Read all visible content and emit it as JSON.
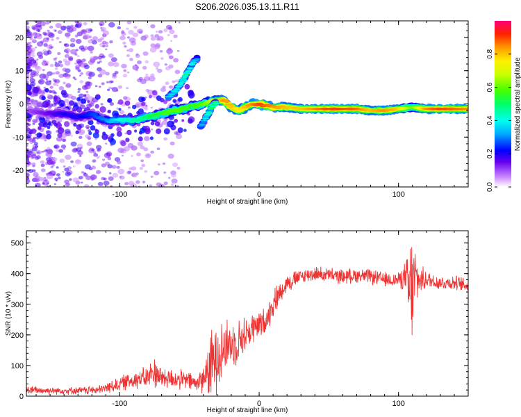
{
  "title": "S206.2026.035.13.11.R11",
  "chart_data": [
    {
      "type": "heatmap",
      "name": "spectrogram",
      "xlabel": "Height of straight line (km)",
      "ylabel": "Frequency (Hz)",
      "xlim": [
        -167,
        150
      ],
      "ylim": [
        -25,
        25
      ],
      "xticks": [
        -100,
        0,
        100
      ],
      "yticks": [
        -20,
        -10,
        0,
        10,
        20
      ],
      "colorbar": {
        "label": "Normalized spectral amplitude",
        "range": [
          0,
          1
        ],
        "ticks": [
          "0.0",
          "0.2",
          "0.4",
          "0.6",
          "0.8"
        ],
        "tick_values": [
          0.0,
          0.2,
          0.4,
          0.6,
          0.8
        ]
      },
      "ridge": {
        "x": [
          -165,
          -150,
          -140,
          -130,
          -120,
          -110,
          -100,
          -90,
          -80,
          -70,
          -60,
          -50,
          -40,
          -32,
          -25,
          -20,
          -15,
          -10,
          -5,
          0,
          10,
          20,
          30,
          40,
          50,
          60,
          70,
          80,
          90,
          100,
          110,
          120,
          130,
          140,
          150
        ],
        "freq": [
          -2,
          -3,
          -3,
          -4,
          -3,
          -5,
          -5,
          -5,
          -4,
          -3,
          -2,
          -1,
          0,
          1,
          1,
          -1,
          -2,
          -1,
          0,
          0,
          -1,
          -1,
          -1.5,
          -1.5,
          -1.5,
          -1.5,
          -1.5,
          -2,
          -2,
          -1.5,
          -1,
          -1.5,
          -1.5,
          -1.5,
          -1.5
        ],
        "amp": [
          0.1,
          0.15,
          0.2,
          0.2,
          0.25,
          0.3,
          0.4,
          0.45,
          0.5,
          0.55,
          0.6,
          0.55,
          0.6,
          0.7,
          0.85,
          0.8,
          0.75,
          0.8,
          0.85,
          0.9,
          0.85,
          0.8,
          0.8,
          0.85,
          0.9,
          0.9,
          0.88,
          0.8,
          0.85,
          0.8,
          0.6,
          0.85,
          0.9,
          0.88,
          0.85
        ]
      },
      "secondary_branches": [
        {
          "x": [
            -65,
            -58,
            -52,
            -48,
            -44
          ],
          "freq": [
            2,
            5,
            9,
            12,
            14
          ],
          "amp": [
            0.35,
            0.4,
            0.45,
            0.4,
            0.3
          ]
        },
        {
          "x": [
            -42,
            -38,
            -34,
            -30
          ],
          "freq": [
            -7,
            -4,
            -1,
            1
          ],
          "amp": [
            0.3,
            0.4,
            0.5,
            0.5
          ]
        }
      ]
    },
    {
      "type": "line",
      "name": "snr",
      "xlabel": "Height of straight line (km)",
      "ylabel": "SNR (10 * v/v)",
      "xlim": [
        -167,
        150
      ],
      "ylim": [
        0,
        540
      ],
      "xticks": [
        -100,
        0,
        100
      ],
      "yticks": [
        0,
        100,
        200,
        300,
        400,
        500
      ],
      "color": "#ee3333",
      "x": [
        -167,
        -150,
        -130,
        -115,
        -100,
        -90,
        -80,
        -75,
        -70,
        -60,
        -50,
        -45,
        -40,
        -35,
        -30,
        -25,
        -20,
        -15,
        -10,
        -5,
        0,
        5,
        10,
        15,
        20,
        25,
        30,
        40,
        50,
        60,
        70,
        80,
        90,
        100,
        105,
        108,
        110,
        112,
        115,
        120,
        130,
        140,
        150
      ],
      "mean": [
        20,
        18,
        18,
        20,
        40,
        55,
        60,
        80,
        60,
        55,
        50,
        40,
        60,
        90,
        150,
        160,
        170,
        180,
        200,
        220,
        230,
        250,
        300,
        340,
        370,
        380,
        390,
        400,
        395,
        390,
        395,
        390,
        380,
        380,
        390,
        330,
        350,
        380,
        380,
        380,
        370,
        370,
        360
      ],
      "noise": [
        12,
        10,
        10,
        12,
        20,
        25,
        30,
        45,
        30,
        28,
        25,
        25,
        40,
        90,
        110,
        80,
        60,
        60,
        50,
        45,
        40,
        35,
        40,
        30,
        25,
        25,
        20,
        20,
        20,
        20,
        20,
        20,
        20,
        20,
        40,
        150,
        160,
        90,
        40,
        25,
        20,
        20,
        20
      ]
    }
  ]
}
